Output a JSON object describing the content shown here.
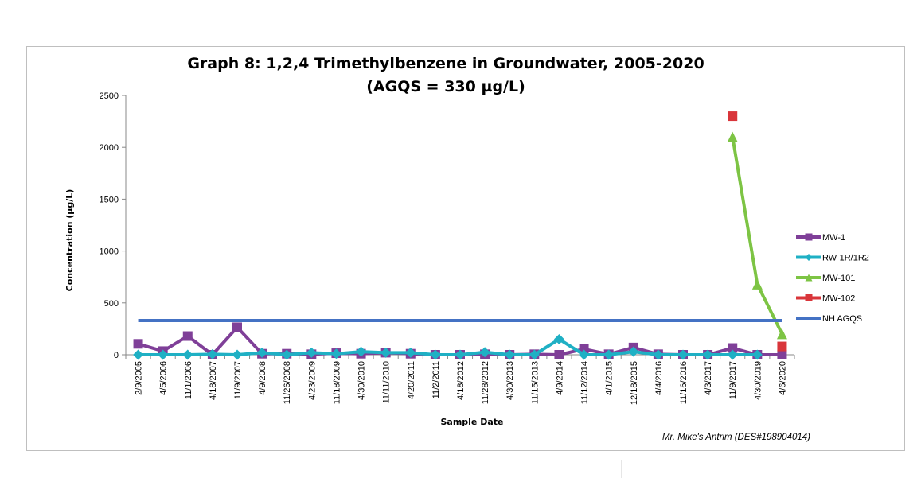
{
  "chart_data": {
    "type": "line",
    "title": "Graph 8: 1,2,4 Trimethylbenzene in Groundwater, 2005-2020",
    "subtitle": "(AGQS = 330 µg/L)",
    "xlabel": "Sample Date",
    "ylabel": "Concentration (µg/L)",
    "ylim": [
      0,
      2500
    ],
    "yticks": [
      0,
      500,
      1000,
      1500,
      2000,
      2500
    ],
    "grid": false,
    "legend_position": "right",
    "categories": [
      "2/9/2005",
      "4/5/2006",
      "11/1/2006",
      "4/18/2007",
      "11/9/2007",
      "4/9/2008",
      "11/26/2008",
      "4/23/2009",
      "11/18/2009",
      "4/30/2010",
      "11/11/2010",
      "4/20/2011",
      "11/2/2011",
      "4/18/2012",
      "11/28/2012",
      "4/30/2013",
      "11/15/2013",
      "4/9/2014",
      "11/12/2014",
      "4/1/2015",
      "12/18/2015",
      "4/4/2016",
      "11/16/2016",
      "4/3/2017",
      "11/9/2017",
      "4/30/2019",
      "4/6/2020"
    ],
    "series": [
      {
        "name": "MW-1",
        "color": "#7f3f98",
        "marker": "square",
        "values": [
          105,
          35,
          180,
          0,
          265,
          10,
          10,
          5,
          15,
          10,
          20,
          10,
          0,
          0,
          5,
          0,
          5,
          0,
          55,
          5,
          70,
          5,
          0,
          0,
          65,
          0,
          0
        ]
      },
      {
        "name": "RW-1R/1R2",
        "color": "#1fb0c4",
        "marker": "diamond",
        "values": [
          0,
          0,
          0,
          5,
          0,
          20,
          0,
          20,
          10,
          30,
          20,
          20,
          0,
          0,
          25,
          0,
          0,
          150,
          0,
          0,
          30,
          0,
          0,
          0,
          0,
          0,
          null
        ]
      },
      {
        "name": "MW-101",
        "color": "#7dc444",
        "marker": "triangle",
        "values": [
          null,
          null,
          null,
          null,
          null,
          null,
          null,
          null,
          null,
          null,
          null,
          null,
          null,
          null,
          null,
          null,
          null,
          null,
          null,
          null,
          null,
          null,
          null,
          null,
          2100,
          680,
          200
        ]
      },
      {
        "name": "MW-102",
        "color": "#d9353a",
        "marker": "square",
        "values": [
          null,
          null,
          null,
          null,
          null,
          null,
          null,
          null,
          null,
          null,
          null,
          null,
          null,
          null,
          null,
          null,
          null,
          null,
          null,
          null,
          null,
          null,
          null,
          null,
          2300,
          null,
          80
        ]
      },
      {
        "name": "NH AGQS",
        "color": "#4472c4",
        "marker": "none",
        "values": [
          330,
          330,
          330,
          330,
          330,
          330,
          330,
          330,
          330,
          330,
          330,
          330,
          330,
          330,
          330,
          330,
          330,
          330,
          330,
          330,
          330,
          330,
          330,
          330,
          330,
          330,
          330
        ]
      }
    ],
    "annotation": "Mr. Mike's Antrim (DES#198904014)"
  }
}
